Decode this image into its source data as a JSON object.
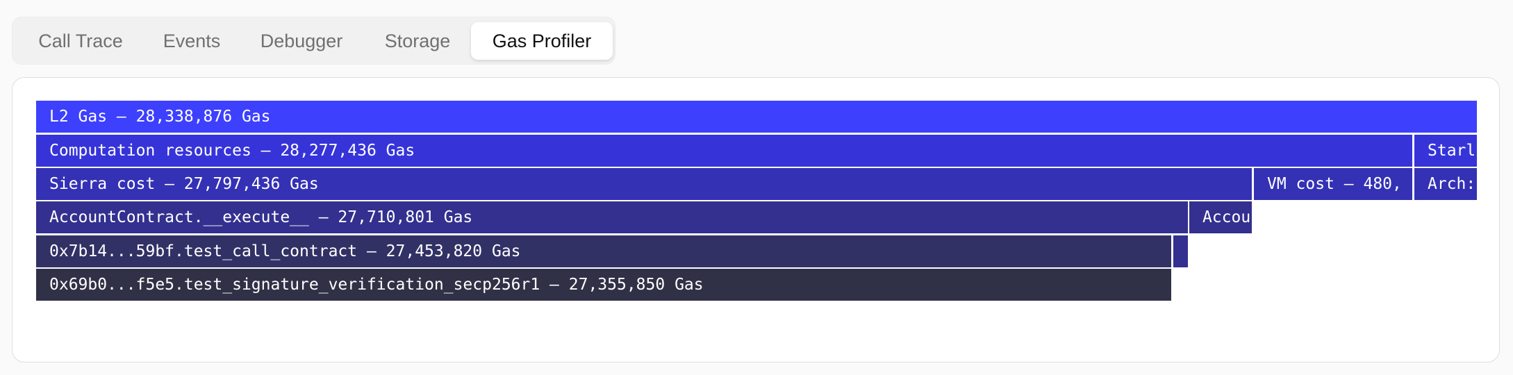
{
  "tabs": [
    "Call Trace",
    "Events",
    "Debugger",
    "Storage",
    "Gas Profiler"
  ],
  "active_tab": "Gas Profiler",
  "flame_rows": [
    [
      "L2 Gas — 28,338,876 Gas"
    ],
    [
      "Computation resources — 28,277,436 Gas",
      "Starl"
    ],
    [
      "Sierra cost — 27,797,436 Gas",
      "VM cost — 480,",
      "Arch:"
    ],
    [
      "AccountContract.__execute__ — 27,710,801 Gas",
      "Accou"
    ],
    [
      "0x7b14...59bf.test_call_contract — 27,453,820 Gas"
    ],
    [
      "0x69b0...f5e5.test_signature_verification_secp256r1 — 27,355,850 Gas"
    ]
  ]
}
